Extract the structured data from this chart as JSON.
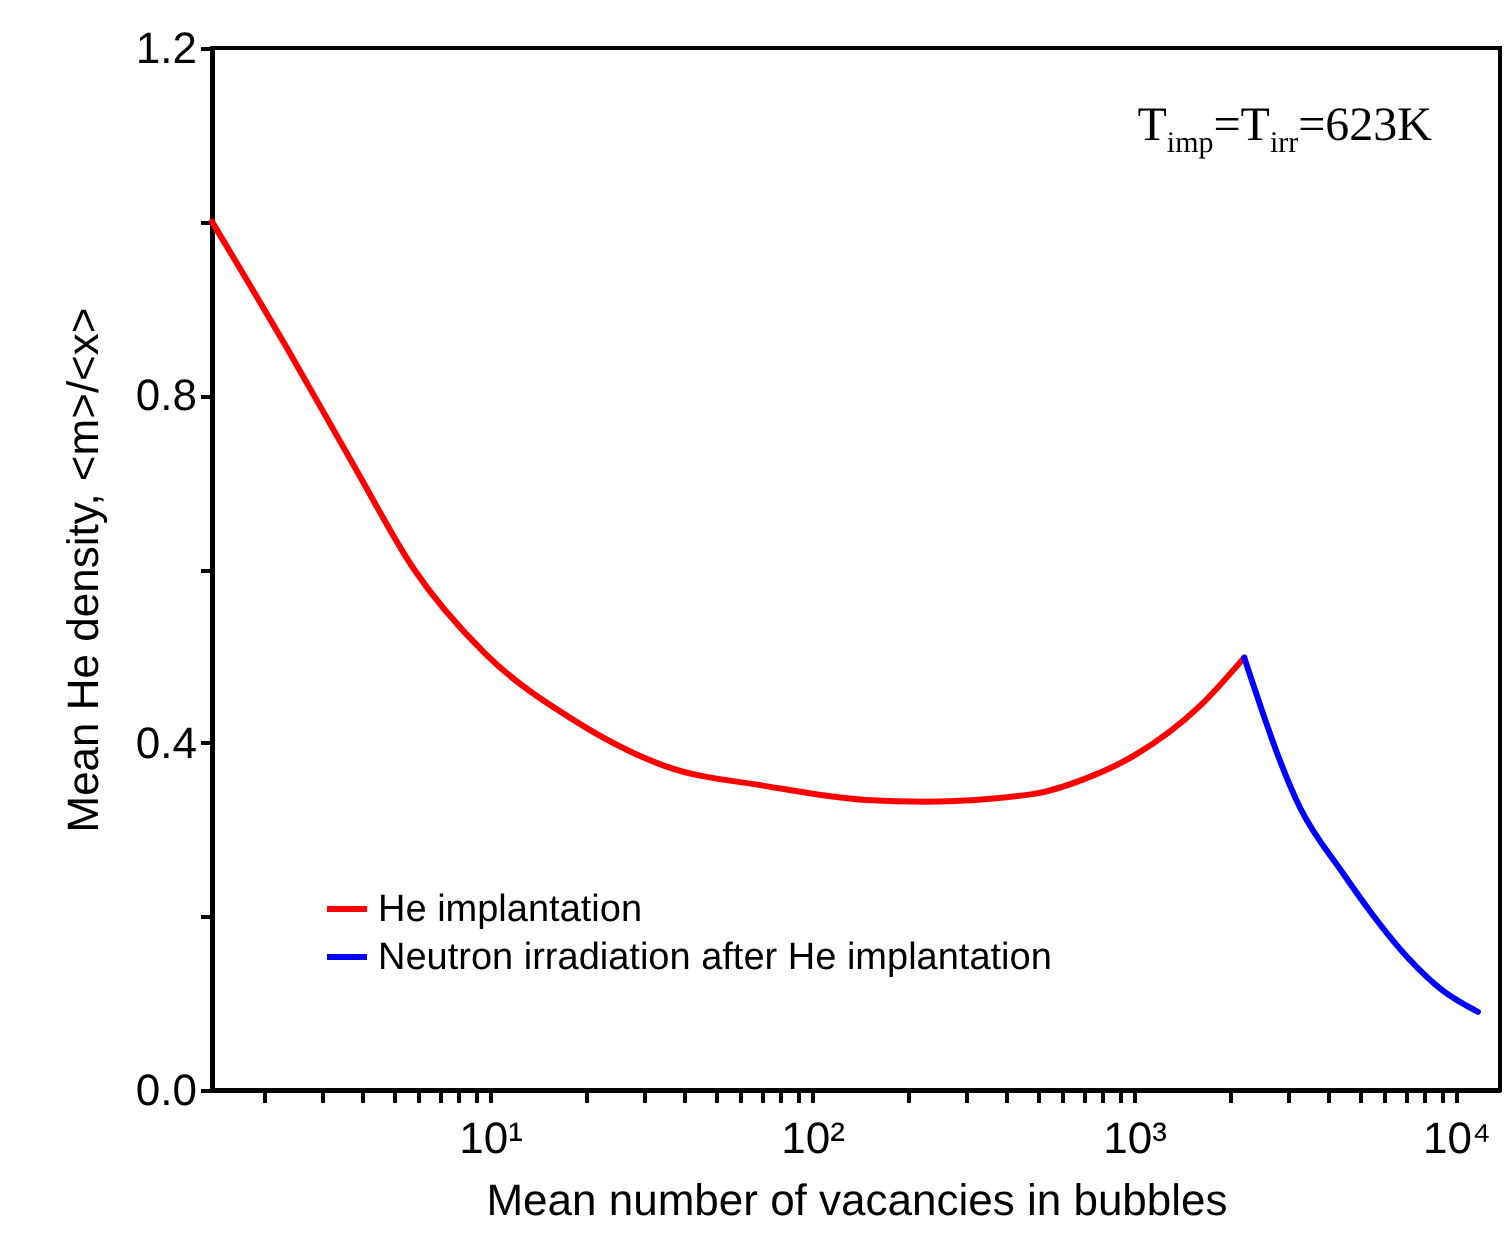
{
  "chart_data": {
    "type": "line",
    "xlabel": "Mean number of vacancies in bubbles",
    "ylabel": "Mean He density, <m>/<x>",
    "log": "x",
    "xlim": [
      1.37,
      13700
    ],
    "ylim": [
      0,
      1.2
    ],
    "xticks": [
      {
        "value": 2,
        "label": null
      },
      {
        "value": 3,
        "label": null
      },
      {
        "value": 4,
        "label": null
      },
      {
        "value": 5,
        "label": null
      },
      {
        "value": 6,
        "label": null
      },
      {
        "value": 7,
        "label": null
      },
      {
        "value": 8,
        "label": null
      },
      {
        "value": 9,
        "label": null
      },
      {
        "value": 10,
        "label": "10¹"
      },
      {
        "value": 20,
        "label": null
      },
      {
        "value": 30,
        "label": null
      },
      {
        "value": 40,
        "label": null
      },
      {
        "value": 50,
        "label": null
      },
      {
        "value": 60,
        "label": null
      },
      {
        "value": 70,
        "label": null
      },
      {
        "value": 80,
        "label": null
      },
      {
        "value": 90,
        "label": null
      },
      {
        "value": 100,
        "label": "10²"
      },
      {
        "value": 200,
        "label": null
      },
      {
        "value": 300,
        "label": null
      },
      {
        "value": 400,
        "label": null
      },
      {
        "value": 500,
        "label": null
      },
      {
        "value": 600,
        "label": null
      },
      {
        "value": 700,
        "label": null
      },
      {
        "value": 800,
        "label": null
      },
      {
        "value": 900,
        "label": null
      },
      {
        "value": 1000,
        "label": "10³"
      },
      {
        "value": 2000,
        "label": null
      },
      {
        "value": 3000,
        "label": null
      },
      {
        "value": 4000,
        "label": null
      },
      {
        "value": 5000,
        "label": null
      },
      {
        "value": 6000,
        "label": null
      },
      {
        "value": 7000,
        "label": null
      },
      {
        "value": 8000,
        "label": null
      },
      {
        "value": 9000,
        "label": null
      },
      {
        "value": 10000,
        "label": "10⁴"
      }
    ],
    "yticks": [
      {
        "value": 0,
        "label": "0.0"
      },
      {
        "value": 0.2,
        "label": null
      },
      0.4,
      {
        "value": 0.6,
        "label": null
      },
      0.8,
      {
        "value": 1.0,
        "label": null
      },
      1.2
    ],
    "grid": false,
    "legend": "bottom left",
    "line_style": "solid",
    "marker": "none",
    "annotations": [
      "T$_{imp}$=T$_{irr}$=623K"
    ],
    "series": [
      {
        "name": "He implantation",
        "color": "#ff0000",
        "x": [
          1.37,
          2.32,
          3.78,
          5.8,
          9.7,
          18.2,
          35,
          72,
          147,
          226,
          489,
          700,
          1000,
          1600,
          2200
        ],
        "values": [
          1.0,
          0.857,
          0.719,
          0.6,
          0.502,
          0.426,
          0.373,
          0.35,
          0.334,
          0.332,
          0.341,
          0.358,
          0.385,
          0.442,
          0.498
        ]
      },
      {
        "name": "Neutron irradiation after He implantation",
        "color": "#0000ff",
        "x": [
          2200,
          3280,
          4430,
          5480,
          7100,
          9060,
          11700
        ],
        "values": [
          0.498,
          0.325,
          0.251,
          0.203,
          0.152,
          0.115,
          0.09
        ]
      }
    ]
  }
}
